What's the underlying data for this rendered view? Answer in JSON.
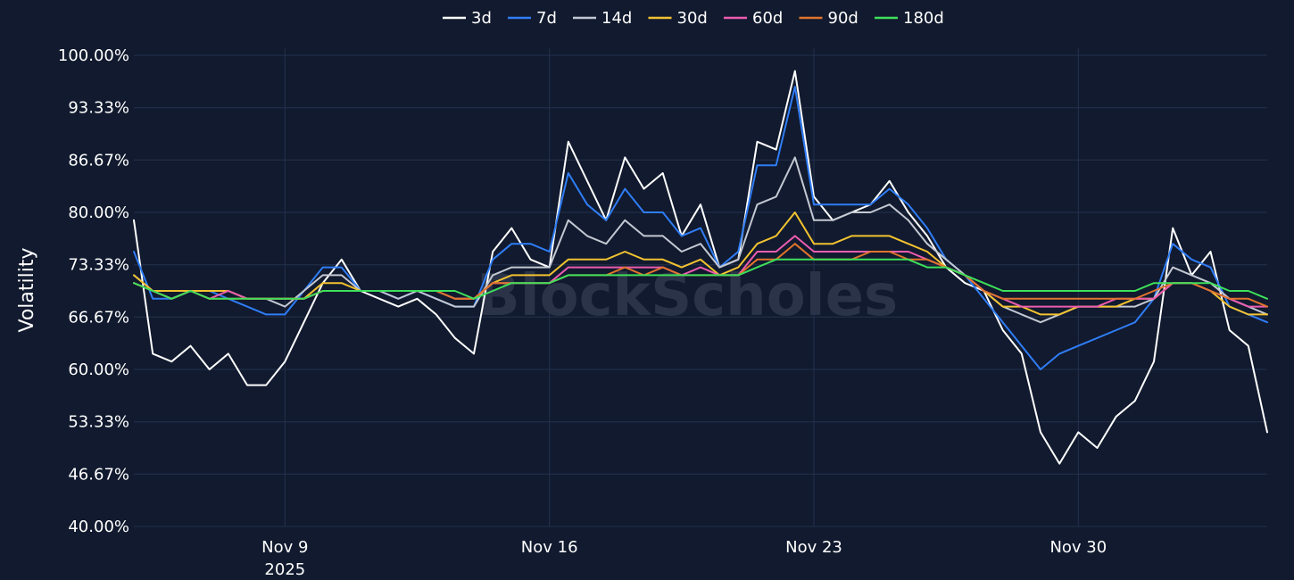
{
  "chart_data": {
    "type": "line",
    "title": "",
    "xlabel": "",
    "ylabel": "Volatility",
    "watermark": "BlockScholes",
    "legend_position": "top-center",
    "grid": true,
    "x_range": [
      "2025-11-05",
      "2025-12-05"
    ],
    "ylim": [
      40,
      100
    ],
    "y_ticks": [
      40.0,
      46.67,
      53.33,
      60.0,
      66.67,
      73.33,
      80.0,
      86.67,
      93.33,
      100.0
    ],
    "y_tick_labels": [
      "40.00%",
      "46.67%",
      "53.33%",
      "60.00%",
      "66.67%",
      "73.33%",
      "80.00%",
      "86.67%",
      "93.33%",
      "100.00%"
    ],
    "x_ticks": [
      {
        "date": "2025-11-09",
        "label": "Nov 9",
        "sublabel": "2025"
      },
      {
        "date": "2025-11-16",
        "label": "Nov 16",
        "sublabel": ""
      },
      {
        "date": "2025-11-23",
        "label": "Nov 23",
        "sublabel": ""
      },
      {
        "date": "2025-11-30",
        "label": "Nov 30",
        "sublabel": ""
      }
    ],
    "colors": {
      "background": "#111a2e",
      "grid": "#24314f"
    },
    "series": [
      {
        "name": "3d",
        "color": "#ffffff",
        "x": [
          "2025-11-05",
          "2025-11-05T12:00",
          "2025-11-06",
          "2025-11-06T12:00",
          "2025-11-07",
          "2025-11-07T12:00",
          "2025-11-08",
          "2025-11-08T12:00",
          "2025-11-09",
          "2025-11-09T12:00",
          "2025-11-10",
          "2025-11-10T12:00",
          "2025-11-11",
          "2025-11-11T12:00",
          "2025-11-12",
          "2025-11-12T12:00",
          "2025-11-13",
          "2025-11-13T12:00",
          "2025-11-14",
          "2025-11-14T12:00",
          "2025-11-15",
          "2025-11-15T12:00",
          "2025-11-16",
          "2025-11-16T12:00",
          "2025-11-17",
          "2025-11-17T12:00",
          "2025-11-18",
          "2025-11-18T12:00",
          "2025-11-19",
          "2025-11-19T12:00",
          "2025-11-20",
          "2025-11-20T12:00",
          "2025-11-21",
          "2025-11-21T12:00",
          "2025-11-22",
          "2025-11-22T12:00",
          "2025-11-23",
          "2025-11-23T12:00",
          "2025-11-24",
          "2025-11-24T12:00",
          "2025-11-25",
          "2025-11-25T12:00",
          "2025-11-26",
          "2025-11-26T12:00",
          "2025-11-27",
          "2025-11-27T12:00",
          "2025-11-28",
          "2025-11-28T12:00",
          "2025-11-29",
          "2025-11-29T12:00",
          "2025-11-30",
          "2025-11-30T12:00",
          "2025-12-01",
          "2025-12-01T12:00",
          "2025-12-02",
          "2025-12-02T12:00",
          "2025-12-03",
          "2025-12-03T12:00",
          "2025-12-04",
          "2025-12-04T12:00",
          "2025-12-05"
        ],
        "values": [
          79,
          62,
          61,
          63,
          60,
          62,
          58,
          58,
          61,
          66,
          71,
          74,
          70,
          69,
          68,
          69,
          67,
          64,
          62,
          75,
          78,
          74,
          73,
          89,
          84,
          79,
          87,
          83,
          85,
          77,
          81,
          73,
          74,
          89,
          88,
          98,
          82,
          79,
          80,
          81,
          84,
          80,
          77,
          73,
          71,
          70,
          65,
          62,
          52,
          48,
          52,
          50,
          54,
          56,
          61,
          78,
          72,
          75,
          65,
          63,
          52
        ]
      },
      {
        "name": "7d",
        "color": "#2f7df6",
        "x": [
          "2025-11-05",
          "2025-11-05T12:00",
          "2025-11-06",
          "2025-11-06T12:00",
          "2025-11-07",
          "2025-11-07T12:00",
          "2025-11-08",
          "2025-11-08T12:00",
          "2025-11-09",
          "2025-11-09T12:00",
          "2025-11-10",
          "2025-11-10T12:00",
          "2025-11-11",
          "2025-11-11T12:00",
          "2025-11-12",
          "2025-11-12T12:00",
          "2025-11-13",
          "2025-11-13T12:00",
          "2025-11-14",
          "2025-11-14T12:00",
          "2025-11-15",
          "2025-11-15T12:00",
          "2025-11-16",
          "2025-11-16T12:00",
          "2025-11-17",
          "2025-11-17T12:00",
          "2025-11-18",
          "2025-11-18T12:00",
          "2025-11-19",
          "2025-11-19T12:00",
          "2025-11-20",
          "2025-11-20T12:00",
          "2025-11-21",
          "2025-11-21T12:00",
          "2025-11-22",
          "2025-11-22T12:00",
          "2025-11-23",
          "2025-11-23T12:00",
          "2025-11-24",
          "2025-11-24T12:00",
          "2025-11-25",
          "2025-11-25T12:00",
          "2025-11-26",
          "2025-11-26T12:00",
          "2025-11-27",
          "2025-11-27T12:00",
          "2025-11-28",
          "2025-11-28T12:00",
          "2025-11-29",
          "2025-11-29T12:00",
          "2025-11-30",
          "2025-11-30T12:00",
          "2025-12-01",
          "2025-12-01T12:00",
          "2025-12-02",
          "2025-12-02T12:00",
          "2025-12-03",
          "2025-12-03T12:00",
          "2025-12-04",
          "2025-12-04T12:00",
          "2025-12-05"
        ],
        "values": [
          75,
          69,
          69,
          70,
          70,
          69,
          68,
          67,
          67,
          70,
          73,
          73,
          70,
          70,
          69,
          70,
          69,
          68,
          68,
          74,
          76,
          76,
          75,
          85,
          81,
          79,
          83,
          80,
          80,
          77,
          78,
          73,
          75,
          86,
          86,
          96,
          81,
          81,
          81,
          81,
          83,
          81,
          78,
          74,
          72,
          69,
          66,
          63,
          60,
          62,
          63,
          64,
          65,
          66,
          69,
          76,
          74,
          73,
          68,
          67,
          66
        ]
      },
      {
        "name": "14d",
        "color": "#c3c8d2",
        "x": [
          "2025-11-05",
          "2025-11-05T12:00",
          "2025-11-06",
          "2025-11-06T12:00",
          "2025-11-07",
          "2025-11-07T12:00",
          "2025-11-08",
          "2025-11-08T12:00",
          "2025-11-09",
          "2025-11-09T12:00",
          "2025-11-10",
          "2025-11-10T12:00",
          "2025-11-11",
          "2025-11-11T12:00",
          "2025-11-12",
          "2025-11-12T12:00",
          "2025-11-13",
          "2025-11-13T12:00",
          "2025-11-14",
          "2025-11-14T12:00",
          "2025-11-15",
          "2025-11-15T12:00",
          "2025-11-16",
          "2025-11-16T12:00",
          "2025-11-17",
          "2025-11-17T12:00",
          "2025-11-18",
          "2025-11-18T12:00",
          "2025-11-19",
          "2025-11-19T12:00",
          "2025-11-20",
          "2025-11-20T12:00",
          "2025-11-21",
          "2025-11-21T12:00",
          "2025-11-22",
          "2025-11-22T12:00",
          "2025-11-23",
          "2025-11-23T12:00",
          "2025-11-24",
          "2025-11-24T12:00",
          "2025-11-25",
          "2025-11-25T12:00",
          "2025-11-26",
          "2025-11-26T12:00",
          "2025-11-27",
          "2025-11-27T12:00",
          "2025-11-28",
          "2025-11-28T12:00",
          "2025-11-29",
          "2025-11-29T12:00",
          "2025-11-30",
          "2025-11-30T12:00",
          "2025-12-01",
          "2025-12-01T12:00",
          "2025-12-02",
          "2025-12-02T12:00",
          "2025-12-03",
          "2025-12-03T12:00",
          "2025-12-04",
          "2025-12-04T12:00",
          "2025-12-05"
        ],
        "values": [
          72,
          70,
          69,
          70,
          70,
          70,
          69,
          69,
          68,
          70,
          72,
          72,
          70,
          70,
          69,
          70,
          69,
          68,
          68,
          72,
          73,
          73,
          73,
          79,
          77,
          76,
          79,
          77,
          77,
          75,
          76,
          73,
          74,
          81,
          82,
          87,
          79,
          79,
          80,
          80,
          81,
          79,
          76,
          74,
          72,
          70,
          68,
          67,
          66,
          67,
          68,
          68,
          68,
          68,
          69,
          73,
          72,
          71,
          69,
          68,
          67
        ]
      },
      {
        "name": "30d",
        "color": "#f2c230",
        "x": [
          "2025-11-05",
          "2025-11-05T12:00",
          "2025-11-06",
          "2025-11-06T12:00",
          "2025-11-07",
          "2025-11-07T12:00",
          "2025-11-08",
          "2025-11-08T12:00",
          "2025-11-09",
          "2025-11-09T12:00",
          "2025-11-10",
          "2025-11-10T12:00",
          "2025-11-11",
          "2025-11-11T12:00",
          "2025-11-12",
          "2025-11-12T12:00",
          "2025-11-13",
          "2025-11-13T12:00",
          "2025-11-14",
          "2025-11-14T12:00",
          "2025-11-15",
          "2025-11-15T12:00",
          "2025-11-16",
          "2025-11-16T12:00",
          "2025-11-17",
          "2025-11-17T12:00",
          "2025-11-18",
          "2025-11-18T12:00",
          "2025-11-19",
          "2025-11-19T12:00",
          "2025-11-20",
          "2025-11-20T12:00",
          "2025-11-21",
          "2025-11-21T12:00",
          "2025-11-22",
          "2025-11-22T12:00",
          "2025-11-23",
          "2025-11-23T12:00",
          "2025-11-24",
          "2025-11-24T12:00",
          "2025-11-25",
          "2025-11-25T12:00",
          "2025-11-26",
          "2025-11-26T12:00",
          "2025-11-27",
          "2025-11-27T12:00",
          "2025-11-28",
          "2025-11-28T12:00",
          "2025-11-29",
          "2025-11-29T12:00",
          "2025-11-30",
          "2025-11-30T12:00",
          "2025-12-01",
          "2025-12-01T12:00",
          "2025-12-02",
          "2025-12-02T12:00",
          "2025-12-03",
          "2025-12-03T12:00",
          "2025-12-04",
          "2025-12-04T12:00",
          "2025-12-05"
        ],
        "values": [
          72,
          70,
          70,
          70,
          70,
          70,
          69,
          69,
          69,
          69,
          71,
          71,
          70,
          70,
          70,
          70,
          70,
          69,
          69,
          71,
          72,
          72,
          72,
          74,
          74,
          74,
          75,
          74,
          74,
          73,
          74,
          72,
          73,
          76,
          77,
          80,
          76,
          76,
          77,
          77,
          77,
          76,
          75,
          73,
          72,
          70,
          68,
          68,
          67,
          67,
          68,
          68,
          68,
          69,
          69,
          71,
          71,
          70,
          68,
          67,
          67
        ]
      },
      {
        "name": "60d",
        "color": "#ec5cb0",
        "x": [
          "2025-11-05",
          "2025-11-05T12:00",
          "2025-11-06",
          "2025-11-06T12:00",
          "2025-11-07",
          "2025-11-07T12:00",
          "2025-11-08",
          "2025-11-08T12:00",
          "2025-11-09",
          "2025-11-09T12:00",
          "2025-11-10",
          "2025-11-10T12:00",
          "2025-11-11",
          "2025-11-11T12:00",
          "2025-11-12",
          "2025-11-12T12:00",
          "2025-11-13",
          "2025-11-13T12:00",
          "2025-11-14",
          "2025-11-14T12:00",
          "2025-11-15",
          "2025-11-15T12:00",
          "2025-11-16",
          "2025-11-16T12:00",
          "2025-11-17",
          "2025-11-17T12:00",
          "2025-11-18",
          "2025-11-18T12:00",
          "2025-11-19",
          "2025-11-19T12:00",
          "2025-11-20",
          "2025-11-20T12:00",
          "2025-11-21",
          "2025-11-21T12:00",
          "2025-11-22",
          "2025-11-22T12:00",
          "2025-11-23",
          "2025-11-23T12:00",
          "2025-11-24",
          "2025-11-24T12:00",
          "2025-11-25",
          "2025-11-25T12:00",
          "2025-11-26",
          "2025-11-26T12:00",
          "2025-11-27",
          "2025-11-27T12:00",
          "2025-11-28",
          "2025-11-28T12:00",
          "2025-11-29",
          "2025-11-29T12:00",
          "2025-11-30",
          "2025-11-30T12:00",
          "2025-12-01",
          "2025-12-01T12:00",
          "2025-12-02",
          "2025-12-02T12:00",
          "2025-12-03",
          "2025-12-03T12:00",
          "2025-12-04",
          "2025-12-04T12:00",
          "2025-12-05"
        ],
        "values": [
          71,
          70,
          69,
          70,
          69,
          70,
          69,
          69,
          69,
          69,
          70,
          70,
          70,
          70,
          70,
          70,
          70,
          69,
          69,
          71,
          71,
          71,
          71,
          73,
          73,
          73,
          73,
          73,
          73,
          72,
          73,
          72,
          72,
          75,
          75,
          77,
          75,
          75,
          75,
          75,
          75,
          75,
          74,
          73,
          72,
          70,
          69,
          68,
          68,
          68,
          68,
          68,
          69,
          69,
          69,
          71,
          71,
          70,
          69,
          68,
          68
        ]
      },
      {
        "name": "90d",
        "color": "#e0742c",
        "x": [
          "2025-11-05",
          "2025-11-05T12:00",
          "2025-11-06",
          "2025-11-06T12:00",
          "2025-11-07",
          "2025-11-07T12:00",
          "2025-11-08",
          "2025-11-08T12:00",
          "2025-11-09",
          "2025-11-09T12:00",
          "2025-11-10",
          "2025-11-10T12:00",
          "2025-11-11",
          "2025-11-11T12:00",
          "2025-11-12",
          "2025-11-12T12:00",
          "2025-11-13",
          "2025-11-13T12:00",
          "2025-11-14",
          "2025-11-14T12:00",
          "2025-11-15",
          "2025-11-15T12:00",
          "2025-11-16",
          "2025-11-16T12:00",
          "2025-11-17",
          "2025-11-17T12:00",
          "2025-11-18",
          "2025-11-18T12:00",
          "2025-11-19",
          "2025-11-19T12:00",
          "2025-11-20",
          "2025-11-20T12:00",
          "2025-11-21",
          "2025-11-21T12:00",
          "2025-11-22",
          "2025-11-22T12:00",
          "2025-11-23",
          "2025-11-23T12:00",
          "2025-11-24",
          "2025-11-24T12:00",
          "2025-11-25",
          "2025-11-25T12:00",
          "2025-11-26",
          "2025-11-26T12:00",
          "2025-11-27",
          "2025-11-27T12:00",
          "2025-11-28",
          "2025-11-28T12:00",
          "2025-11-29",
          "2025-11-29T12:00",
          "2025-11-30",
          "2025-11-30T12:00",
          "2025-12-01",
          "2025-12-01T12:00",
          "2025-12-02",
          "2025-12-02T12:00",
          "2025-12-03",
          "2025-12-03T12:00",
          "2025-12-04",
          "2025-12-04T12:00",
          "2025-12-05"
        ],
        "values": [
          71,
          70,
          69,
          70,
          69,
          69,
          69,
          69,
          69,
          69,
          70,
          70,
          70,
          70,
          70,
          70,
          70,
          69,
          69,
          71,
          71,
          71,
          71,
          72,
          72,
          72,
          73,
          72,
          73,
          72,
          72,
          72,
          72,
          74,
          74,
          76,
          74,
          74,
          74,
          75,
          75,
          74,
          74,
          73,
          72,
          70,
          69,
          69,
          69,
          69,
          69,
          69,
          69,
          69,
          70,
          71,
          71,
          70,
          69,
          69,
          68
        ]
      },
      {
        "name": "180d",
        "color": "#3ee05a",
        "x": [
          "2025-11-05",
          "2025-11-05T12:00",
          "2025-11-06",
          "2025-11-06T12:00",
          "2025-11-07",
          "2025-11-07T12:00",
          "2025-11-08",
          "2025-11-08T12:00",
          "2025-11-09",
          "2025-11-09T12:00",
          "2025-11-10",
          "2025-11-10T12:00",
          "2025-11-11",
          "2025-11-11T12:00",
          "2025-11-12",
          "2025-11-12T12:00",
          "2025-11-13",
          "2025-11-13T12:00",
          "2025-11-14",
          "2025-11-14T12:00",
          "2025-11-15",
          "2025-11-15T12:00",
          "2025-11-16",
          "2025-11-16T12:00",
          "2025-11-17",
          "2025-11-17T12:00",
          "2025-11-18",
          "2025-11-18T12:00",
          "2025-11-19",
          "2025-11-19T12:00",
          "2025-11-20",
          "2025-11-20T12:00",
          "2025-11-21",
          "2025-11-21T12:00",
          "2025-11-22",
          "2025-11-22T12:00",
          "2025-11-23",
          "2025-11-23T12:00",
          "2025-11-24",
          "2025-11-24T12:00",
          "2025-11-25",
          "2025-11-25T12:00",
          "2025-11-26",
          "2025-11-26T12:00",
          "2025-11-27",
          "2025-11-27T12:00",
          "2025-11-28",
          "2025-11-28T12:00",
          "2025-11-29",
          "2025-11-29T12:00",
          "2025-11-30",
          "2025-11-30T12:00",
          "2025-12-01",
          "2025-12-01T12:00",
          "2025-12-02",
          "2025-12-02T12:00",
          "2025-12-03",
          "2025-12-03T12:00",
          "2025-12-04",
          "2025-12-04T12:00",
          "2025-12-05"
        ],
        "values": [
          71,
          70,
          69,
          70,
          69,
          69,
          69,
          69,
          69,
          69,
          70,
          70,
          70,
          70,
          70,
          70,
          70,
          70,
          69,
          70,
          71,
          71,
          71,
          72,
          72,
          72,
          72,
          72,
          72,
          72,
          72,
          72,
          72,
          73,
          74,
          74,
          74,
          74,
          74,
          74,
          74,
          74,
          73,
          73,
          72,
          71,
          70,
          70,
          70,
          70,
          70,
          70,
          70,
          70,
          71,
          71,
          71,
          71,
          70,
          70,
          69
        ]
      }
    ]
  }
}
